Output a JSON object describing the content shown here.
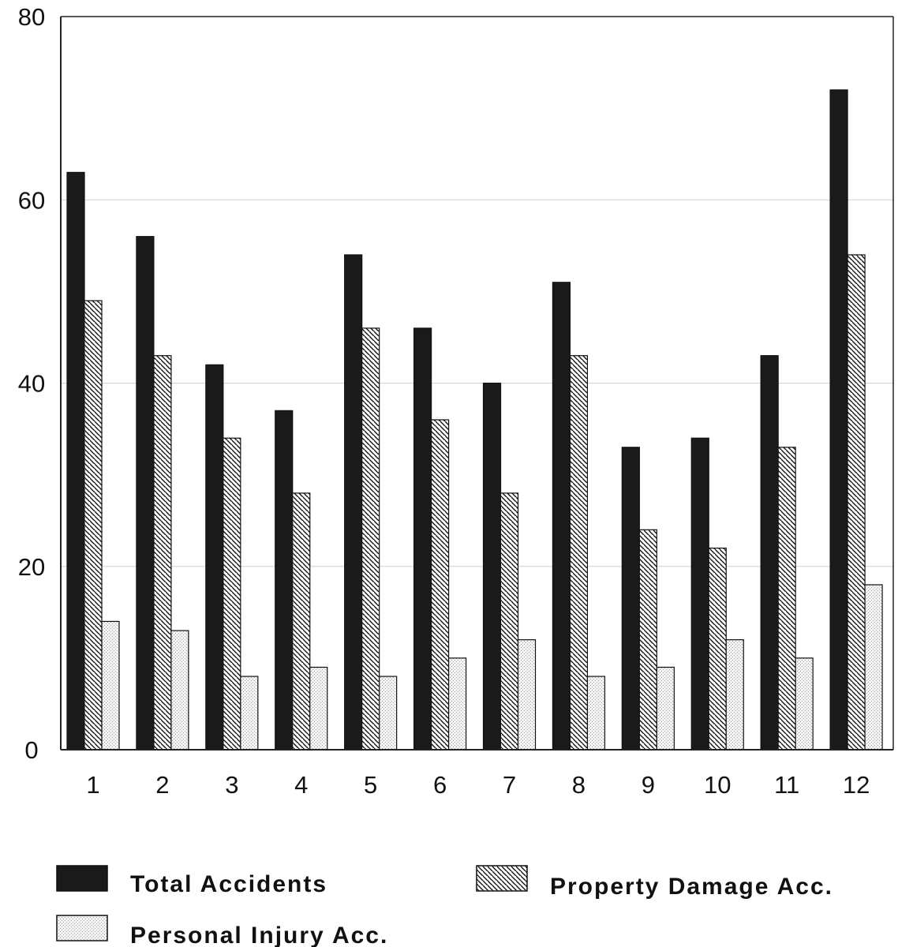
{
  "chart_data": {
    "type": "bar",
    "categories": [
      "1",
      "2",
      "3",
      "4",
      "5",
      "6",
      "7",
      "8",
      "9",
      "10",
      "11",
      "12"
    ],
    "series": [
      {
        "name": "Total Accidents",
        "values": [
          63,
          56,
          42,
          37,
          54,
          46,
          40,
          51,
          33,
          34,
          43,
          72
        ]
      },
      {
        "name": "Property Damage Acc.",
        "values": [
          49,
          43,
          34,
          28,
          46,
          36,
          28,
          43,
          24,
          22,
          33,
          54
        ]
      },
      {
        "name": "Personal Injury Acc.",
        "values": [
          14,
          13,
          8,
          9,
          8,
          10,
          12,
          8,
          9,
          12,
          10,
          18
        ]
      }
    ],
    "yticks": [
      "0",
      "20",
      "40",
      "60",
      "80"
    ],
    "ylim": [
      0,
      80
    ],
    "title": "",
    "xlabel": "",
    "ylabel": "",
    "grid": true,
    "legend_position": "bottom",
    "colors": {
      "total": "#1a1a1a",
      "property": "#ffffff",
      "personal": "#ececec",
      "axis": "#222222",
      "grid": "#cfcfcf"
    }
  }
}
